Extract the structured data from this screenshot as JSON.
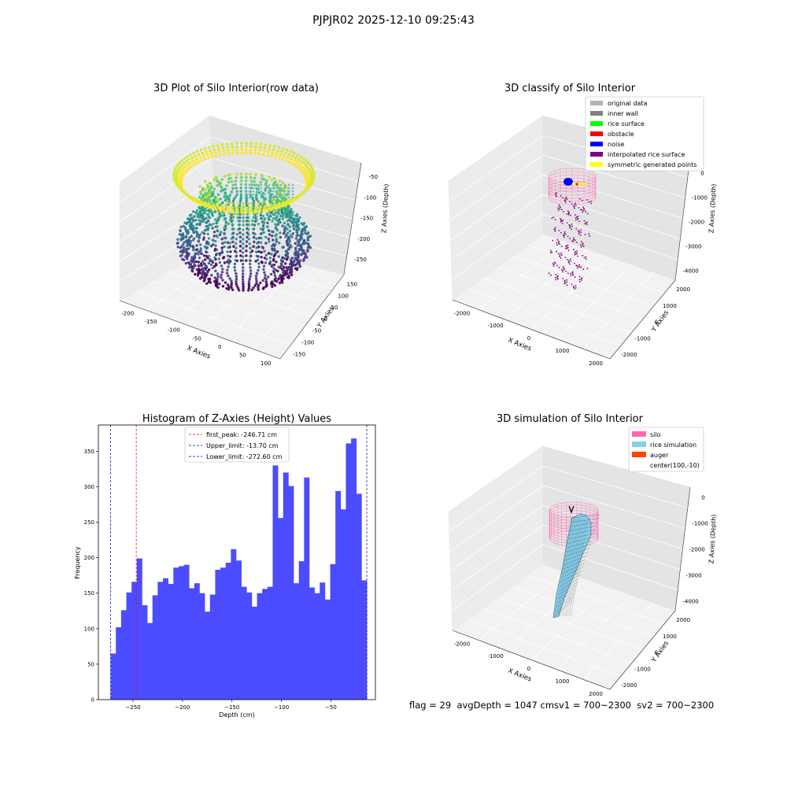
{
  "figure": {
    "suptitle": "PJPJR02 2025-12-10 09:25:43"
  },
  "footer": {
    "text": "flag = 29  avgDepth = 1047 cmsv1 = 700~2300  sv2 = 700~2300"
  },
  "chart_data": [
    {
      "type": "scatter3d",
      "title": "3D Plot of Silo Interior(row data)",
      "xlabel": "X Axies",
      "ylabel": "Y Axies",
      "zlabel": "Z Axies (Depth)",
      "x_ticks": [
        "-200",
        "-150",
        "-100",
        "-50",
        "0",
        "50",
        "100"
      ],
      "y_ticks": [
        "-150",
        "-100",
        "-50",
        "0",
        "50",
        "100",
        "150"
      ],
      "z_ticks": [
        "-50",
        "-100",
        "-150",
        "-200",
        "-250"
      ],
      "xlim": [
        -220,
        110
      ],
      "ylim": [
        -160,
        170
      ],
      "zlim": [
        -280,
        -20
      ],
      "colormap": "viridis (z-coloured)"
    },
    {
      "type": "scatter3d",
      "title": "3D classify of Silo Interior",
      "xlabel": "X Axies",
      "ylabel": "Y Axies",
      "zlabel": "Z Axies (Depth)",
      "x_ticks": [
        "-2000",
        "-1000",
        "0",
        "1000",
        "2000"
      ],
      "y_ticks": [
        "-2000",
        "-1000",
        "0",
        "1000",
        "2000"
      ],
      "z_ticks": [
        "0",
        "-1000",
        "-2000",
        "-3000",
        "-4000"
      ],
      "legend_position": "top-right",
      "legend": [
        {
          "label": "original data",
          "color": "#b3b3b3"
        },
        {
          "label": "inner wall",
          "color": "#808080"
        },
        {
          "label": "rice surface",
          "color": "#00ff00"
        },
        {
          "label": "obstacle",
          "color": "#ff0000"
        },
        {
          "label": "noise",
          "color": "#0000ff"
        },
        {
          "label": "interpolated rice surface",
          "color": "#800080"
        },
        {
          "label": "symmetric generated points",
          "color": "#ffff00"
        }
      ]
    },
    {
      "type": "histogram",
      "title": "Histogram of Z-Axies (Height) Values",
      "xlabel": "Depth (cm)",
      "ylabel": "Frequency",
      "xlim": [
        -285,
        -5
      ],
      "ylim": [
        0,
        387
      ],
      "x_ticks": [
        -250,
        -200,
        -150,
        -100,
        -50
      ],
      "y_ticks": [
        0,
        50,
        100,
        150,
        200,
        250,
        300,
        350
      ],
      "bar_color": "#4b4bff",
      "bin_start": -272.6,
      "bin_end": -13.7,
      "values": [
        65,
        102,
        126,
        151,
        166,
        199,
        133,
        108,
        147,
        166,
        171,
        163,
        186,
        188,
        190,
        157,
        164,
        150,
        124,
        148,
        183,
        186,
        193,
        212,
        196,
        159,
        151,
        131,
        150,
        156,
        159,
        330,
        256,
        320,
        301,
        164,
        195,
        313,
        158,
        150,
        165,
        141,
        191,
        294,
        268,
        361,
        368,
        290,
        168
      ],
      "vlines": [
        {
          "label": "first_peak: -246.71 cm",
          "x": -246.71,
          "color": "#ff0000"
        },
        {
          "label": "Upper_limit: -13.70 cm",
          "x": -13.7,
          "color": "#0000aa"
        },
        {
          "label": "Lower_limit: -272.60 cm",
          "x": -272.6,
          "color": "#0000aa"
        }
      ],
      "legend_position": "upper center"
    },
    {
      "type": "surface3d",
      "title": "3D simulation of Silo Interior",
      "xlabel": "X Axies",
      "ylabel": "Y Axies",
      "zlabel": "Z Axies (Depth)",
      "x_ticks": [
        "-2000",
        "-1000",
        "0",
        "1000",
        "2000"
      ],
      "y_ticks": [
        "-2000",
        "-1000",
        "0",
        "1000",
        "2000"
      ],
      "z_ticks": [
        "0",
        "-1000",
        "-2000",
        "-3000",
        "-4000"
      ],
      "legend_position": "top-right",
      "legend": [
        {
          "label": "silo",
          "color": "#ff69b4"
        },
        {
          "label": "rice simulation",
          "color": "#87ceeb"
        },
        {
          "label": "auger",
          "color": "#ff4500"
        },
        {
          "label": "center(100,-10)",
          "color": ""
        }
      ]
    }
  ]
}
